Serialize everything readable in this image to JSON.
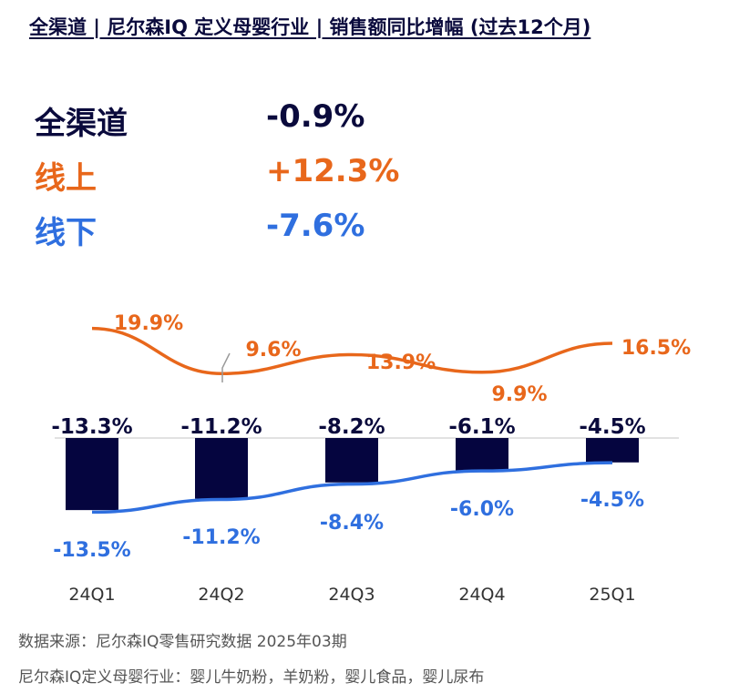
{
  "title": "全渠道 | 尼尔森IQ 定义母婴行业 | 销售额同比增幅 (过去12个月)",
  "summary": [
    {
      "label": "全渠道",
      "value": "-0.9%",
      "color": "#0a0a3c"
    },
    {
      "label": "线上",
      "value": "+12.3%",
      "color": "#e8671b"
    },
    {
      "label": "线下",
      "value": "-7.6%",
      "color": "#2f6fdf"
    }
  ],
  "colors": {
    "bar": "#05053f",
    "online": "#e8671b",
    "offline": "#2f6fdf",
    "text_dark": "#0a0a3c",
    "axis_label": "#333333"
  },
  "chart_data": {
    "type": "bar",
    "categories": [
      "24Q1",
      "24Q2",
      "24Q3",
      "24Q4",
      "25Q1"
    ],
    "series": [
      {
        "name": "全渠道",
        "type": "bar",
        "values": [
          -13.3,
          -11.2,
          -8.2,
          -6.1,
          -4.5
        ],
        "labels": [
          "-13.3%",
          "-11.2%",
          "-8.2%",
          "-6.1%",
          "-4.5%"
        ]
      },
      {
        "name": "线上",
        "type": "line",
        "values": [
          19.9,
          9.6,
          13.9,
          9.9,
          16.5
        ],
        "labels": [
          "19.9%",
          "9.6%",
          "13.9%",
          "9.9%",
          "16.5%"
        ]
      },
      {
        "name": "线下",
        "type": "line",
        "values": [
          -13.5,
          -11.2,
          -8.4,
          -6.0,
          -4.5
        ],
        "labels": [
          "-13.5%",
          "-11.2%",
          "-8.4%",
          "-6.0%",
          "-4.5%"
        ]
      }
    ]
  },
  "footer": {
    "source": "数据来源：尼尔森IQ零售研究数据 2025年03期",
    "definition": "尼尔森IQ定义母婴行业：婴儿牛奶粉，羊奶粉，婴儿食品，婴儿尿布"
  }
}
